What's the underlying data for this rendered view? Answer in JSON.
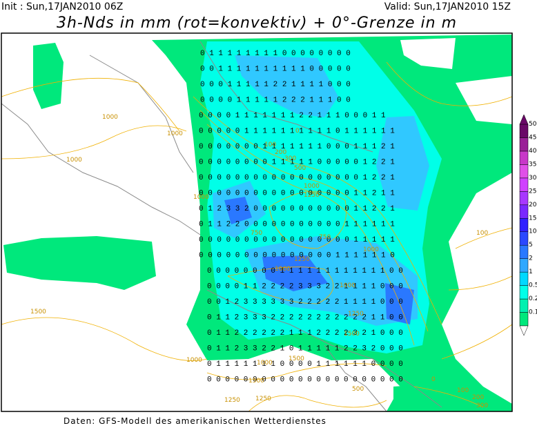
{
  "header": {
    "init": "Init : Sun,17JAN2010 06Z",
    "valid": "Valid: Sun,17JAN2010 15Z",
    "title": "3h-Nds in mm (rot=konvektiv) + 0°-Grenze in m"
  },
  "legend": {
    "labels": [
      "0.1",
      "0.2",
      "0.5",
      "1",
      "2",
      "5",
      "10",
      "15",
      "20",
      "25",
      "30",
      "35",
      "40",
      "45",
      "50"
    ],
    "colors": [
      "#00e87c",
      "#00f0b0",
      "#00ffe8",
      "#00d8ff",
      "#30a8ff",
      "#2a78ff",
      "#2a48ff",
      "#3020ff",
      "#7a28ff",
      "#a838ff",
      "#d040ff",
      "#e050e8",
      "#c838c8",
      "#9a2098",
      "#6a0868"
    ]
  },
  "contour_labels": [
    "1000",
    "1000",
    "1000",
    "1000",
    "1500",
    "100",
    "200",
    "300",
    "500",
    "0",
    "1000",
    "1250",
    "750",
    "750",
    "1250",
    "1000",
    "1000",
    "1000",
    "1250",
    "1500",
    "1000",
    "1000",
    "1500",
    "1500",
    "1250",
    "1250",
    "500",
    "0",
    "100",
    "200",
    "300",
    "100"
  ],
  "grid_rows": [
    "0 1 1 1 1 1 1 1 1 0 0 0 0 0 0 0 0",
    "0 0 1 1 1 1 1 1 1 1 1 1 0 0 0 0 0",
    "0 0 0 1 1 1 1 1 2 2 1 1 1 1 0 0 0",
    "0 0 0 0 1 1 1 1 1 2 2 2 1 1 1 0 0",
    "0 0 0 0 1 1 1 1 1 1 1 2 2 1 1 1 0 0 0 1 1",
    "0 0 0 0 0 1 1 1 1 1 1 1 1 1 1 0 1 1 1 1 1 1",
    "0 0 0 0 0 0 0 1 1 1 1 1 1 1 0 0 0 1 1 1 2 1",
    "0 0 0 0 0 0 0 0 1 1 1 1 1 0 0 0 0 0 1 2 2 1",
    "0 0 0 0 0 0 0 0 0 0 0 0 0 0 0 0 0 0 1 2 2 1",
    "0 0 0 0 0 0 0 0 0 0 0 0 0 0 0 0 0 1 1 2 1 1",
    "0 1 2 3 3 2 0 0 0 0 0 0 0 0 0 0 0 1 1 2 2 1",
    "0 1 1 2 2 0 0 0 0 0 0 0 0 0 0 0 1 1 1 1 1 1",
    "0 0 0 0 0 0 0 0 0 0 0 0 0 0 0 0 0 1 1 1 1 1",
    "0 0 0 0 0 0 0 0 0 0 0 0 0 0 0 1 1 1 1 1 1 0",
    "0 0 0 0 0 0 0 0 1 1 1 1 1 1 1 1 1 1 1 1 0 0",
    "0 0 0 0 1 1 2 2 2 2 3 3 3 2 2 1 1 1 1 0 0 0",
    "0 0 1 2 3 3 3 3 3 3 2 2 2 2 2 1 1 1 1 0 0 0",
    "0 1 1 2 3 3 3 2 2 2 2 2 2 2 2 2 2 2 1 1 0 0",
    "0 1 1 2 2 2 2 2 2 1 1 1 2 2 2 2 3 2 1 0 0 0",
    "0 1 1 2 3 3 2 2 1 0 1 1 1 1 1 2 2 3 2 0 0 0",
    "0 1 1 1 1 1 1 1 0 0 0 0 1 1 1 1 1 1 0 0 0 0",
    "0 0 0 0 0 0 0 0 0 0 0 0 0 0 0 0 0 0 0 0 0 0"
  ],
  "footer": "Daten: GFS-Modell des amerikanischen Wetterdienstes"
}
